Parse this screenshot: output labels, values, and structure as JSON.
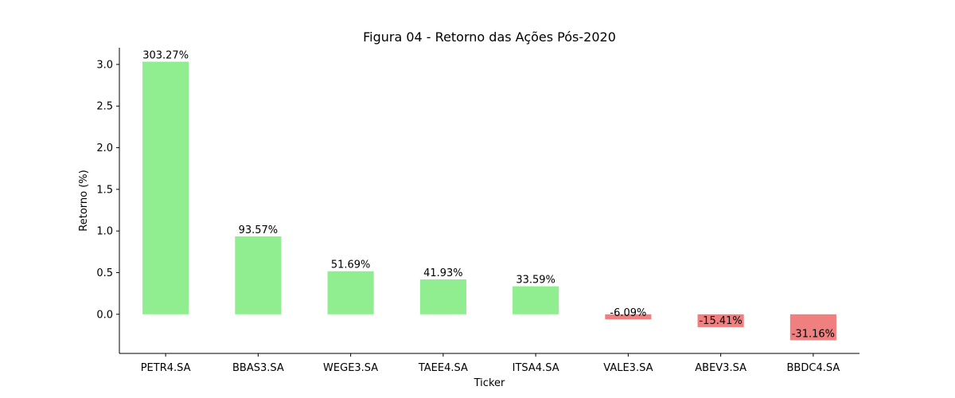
{
  "chart_data": {
    "type": "bar",
    "title": "Figura 04 - Retorno das Ações Pós-2020",
    "xlabel": "Ticker",
    "ylabel": "Retorno (%)",
    "categories": [
      "PETR4.SA",
      "BBAS3.SA",
      "WEGE3.SA",
      "TAEE4.SA",
      "ITSA4.SA",
      "VALE3.SA",
      "ABEV3.SA",
      "BBDC4.SA"
    ],
    "values": [
      3.0327,
      0.9357,
      0.5169,
      0.4193,
      0.3359,
      -0.0609,
      -0.1541,
      -0.3116
    ],
    "data_labels": [
      "303.27%",
      "93.57%",
      "51.69%",
      "41.93%",
      "33.59%",
      "-6.09%",
      "-15.41%",
      "-31.16%"
    ],
    "yticks": [
      0.0,
      0.5,
      1.0,
      1.5,
      2.0,
      2.5,
      3.0
    ],
    "ytick_labels": [
      "0.0",
      "0.5",
      "1.0",
      "1.5",
      "2.0",
      "2.5",
      "3.0"
    ],
    "ylim": [
      -0.47,
      3.2
    ],
    "grid": false,
    "legend": "none",
    "colors": {
      "positive": "#90ee90",
      "negative": "#f08080",
      "axis": "#000000"
    }
  }
}
